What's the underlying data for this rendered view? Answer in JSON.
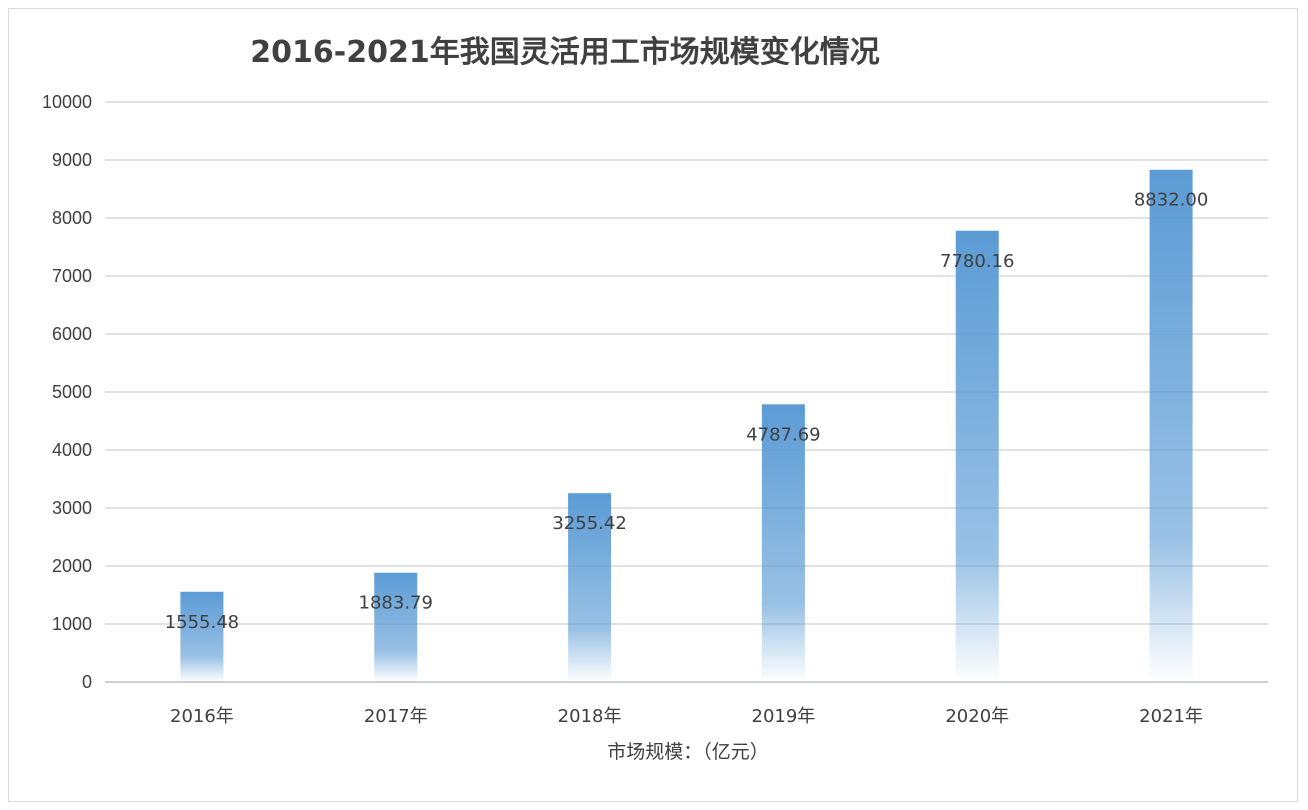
{
  "chart_data": {
    "type": "bar",
    "title": "2016-2021年我国灵活用工市场规模变化情况",
    "xlabel": "市场规模：（亿元）",
    "ylabel": "",
    "categories": [
      "2016年",
      "2017年",
      "2018年",
      "2019年",
      "2020年",
      "2021年"
    ],
    "values": [
      1555.48,
      1883.79,
      3255.42,
      4787.69,
      7780.16,
      8832.0
    ],
    "data_labels": [
      "1555.48",
      "1883.79",
      "3255.42",
      "4787.69",
      "7780.16",
      "8832.00"
    ],
    "ylim": [
      0,
      10000
    ],
    "yticks": [
      "0",
      "1000",
      "2000",
      "3000",
      "4000",
      "5000",
      "6000",
      "7000",
      "8000",
      "9000",
      "10000"
    ],
    "grid": true,
    "legend": "none",
    "bar_color": "#5b9bd5"
  }
}
